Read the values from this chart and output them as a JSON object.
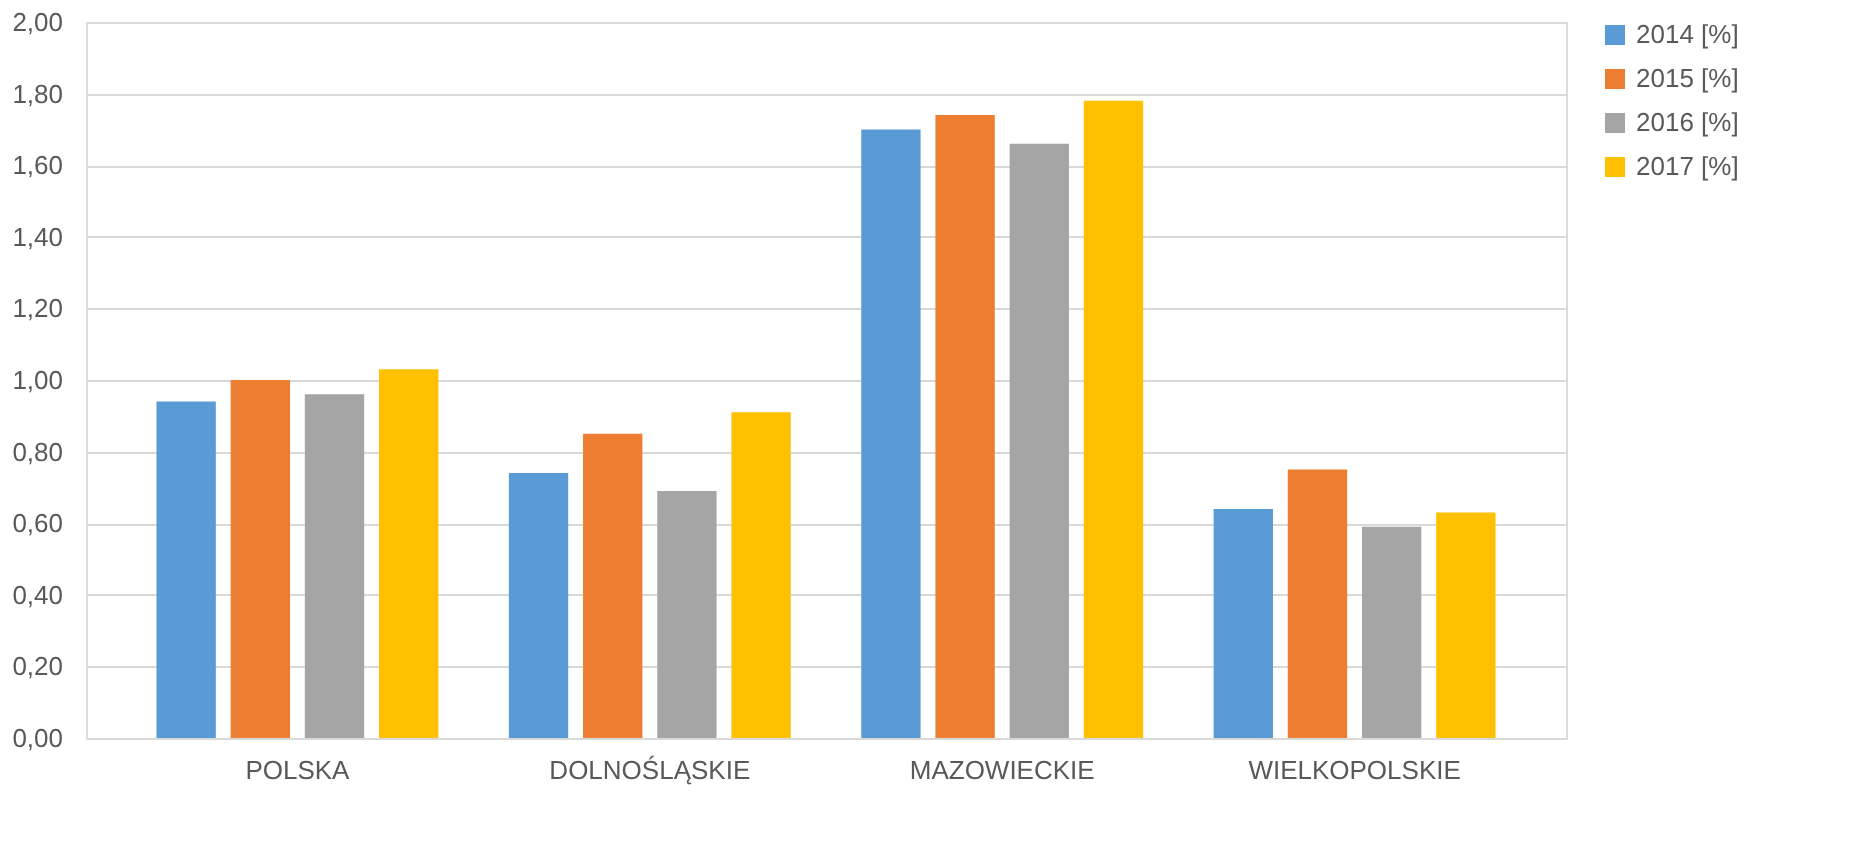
{
  "chart_data": {
    "type": "bar",
    "categories": [
      "POLSKA",
      "DOLNOŚLĄSKIE",
      "MAZOWIECKIE",
      "WIELKOPOLSKIE"
    ],
    "series": [
      {
        "name": "2014 [%]",
        "color": "#5b9bd5",
        "values": [
          0.94,
          0.74,
          1.7,
          0.64
        ]
      },
      {
        "name": "2015 [%]",
        "color": "#ed7d31",
        "values": [
          1.0,
          0.85,
          1.74,
          0.75
        ]
      },
      {
        "name": "2016 [%]",
        "color": "#a5a5a5",
        "values": [
          0.96,
          0.69,
          1.66,
          0.59
        ]
      },
      {
        "name": "2017 [%]",
        "color": "#ffc000",
        "values": [
          1.03,
          0.91,
          1.78,
          0.63
        ]
      }
    ],
    "ylim": [
      0,
      2
    ],
    "yticks": [
      {
        "value": 0,
        "label": "0,00"
      },
      {
        "value": 0.2,
        "label": "0,20"
      },
      {
        "value": 0.4,
        "label": "0,40"
      },
      {
        "value": 0.6,
        "label": "0,60"
      },
      {
        "value": 0.8,
        "label": "0,80"
      },
      {
        "value": 1,
        "label": "1,00"
      },
      {
        "value": 1.2,
        "label": "1,20"
      },
      {
        "value": 1.4,
        "label": "1,40"
      },
      {
        "value": 1.6,
        "label": "1,60"
      },
      {
        "value": 1.8,
        "label": "1,80"
      },
      {
        "value": 2,
        "label": "2,00"
      }
    ],
    "grid": "y",
    "legend": "right"
  }
}
